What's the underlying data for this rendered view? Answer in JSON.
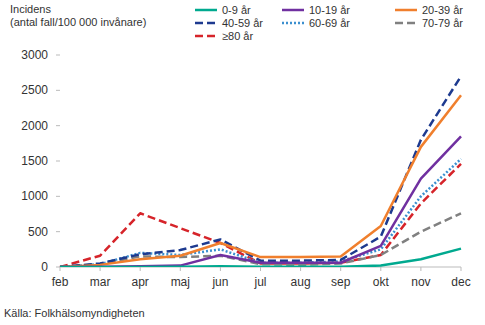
{
  "chart_data": {
    "type": "line",
    "ylabel": [
      "Incidens",
      "(antal fall/100 000 invånare)"
    ],
    "source": "Källa: Folkhälsomyndigheten",
    "categories": [
      "feb",
      "mar",
      "apr",
      "maj",
      "jun",
      "jul",
      "aug",
      "sep",
      "okt",
      "nov",
      "dec"
    ],
    "series": [
      {
        "name": "0-9 år",
        "color": "#00a98f",
        "line_style": "solid",
        "values": [
          0,
          0,
          0,
          5,
          10,
          5,
          5,
          5,
          20,
          110,
          260
        ]
      },
      {
        "name": "10-19 år",
        "color": "#7030a0",
        "line_style": "solid",
        "values": [
          0,
          5,
          10,
          20,
          170,
          60,
          60,
          60,
          300,
          1250,
          1850
        ]
      },
      {
        "name": "20-39 år",
        "color": "#f07f2d",
        "line_style": "solid",
        "values": [
          0,
          30,
          110,
          160,
          340,
          140,
          140,
          150,
          580,
          1700,
          2430
        ]
      },
      {
        "name": "40-59 år",
        "color": "#1d3a8f",
        "line_style": "dashed",
        "values": [
          0,
          50,
          180,
          240,
          390,
          90,
          90,
          100,
          430,
          1800,
          2700
        ]
      },
      {
        "name": "60-69 år",
        "color": "#3b8fcf",
        "line_style": "dotted",
        "values": [
          0,
          40,
          200,
          170,
          250,
          60,
          60,
          80,
          250,
          1000,
          1530
        ]
      },
      {
        "name": "70-79 år",
        "color": "#808080",
        "line_style": "dashed",
        "values": [
          0,
          40,
          150,
          140,
          160,
          40,
          30,
          50,
          170,
          500,
          760
        ]
      },
      {
        "name": "≥80 år",
        "color": "#d6242a",
        "line_style": "dashed",
        "values": [
          0,
          160,
          760,
          550,
          340,
          50,
          50,
          60,
          170,
          900,
          1460
        ]
      }
    ],
    "ylim": [
      0,
      3000
    ],
    "yticks": [
      0,
      500,
      1000,
      1500,
      2000,
      2500,
      3000
    ],
    "legend": "top",
    "grid": false
  }
}
